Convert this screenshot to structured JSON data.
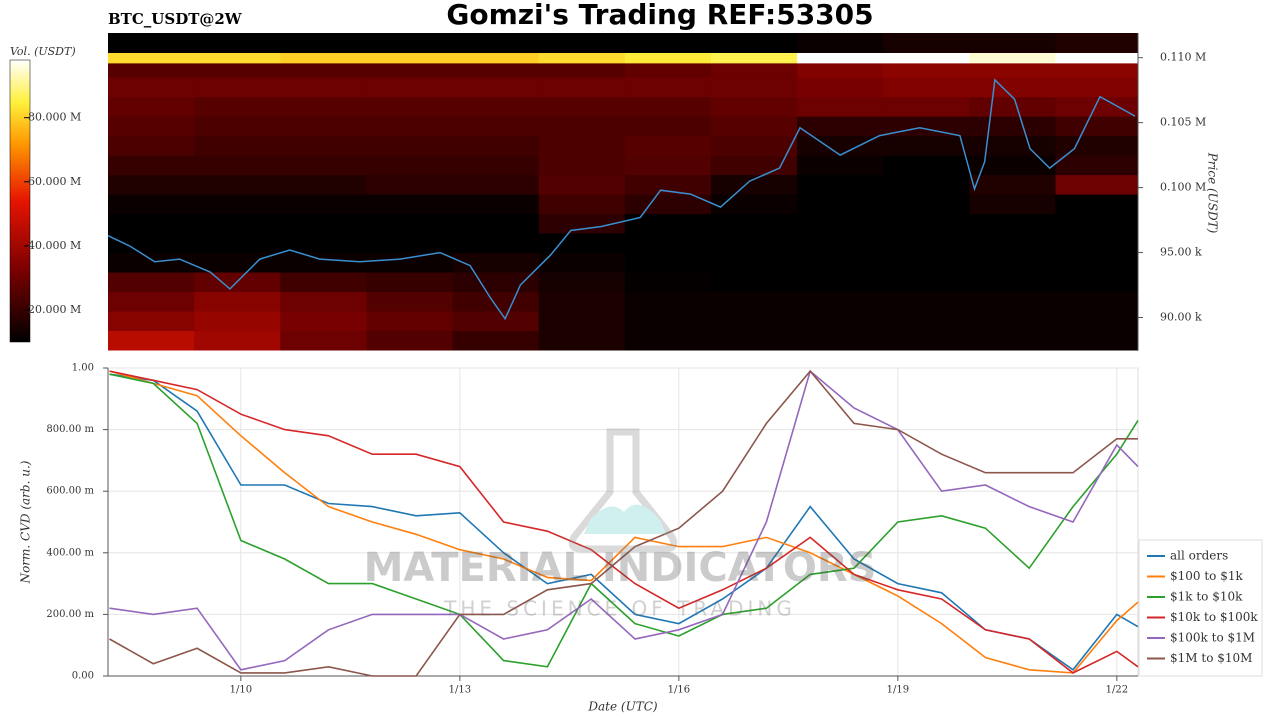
{
  "title": "Gomzi's Trading REF:53305",
  "symbol": "BTC_USDT@2W",
  "watermark": {
    "brand": "MATERIAL INDICATORS",
    "tagline": "THE SCIENCE OF TRADING"
  },
  "chart_data": [
    {
      "type": "heatmap",
      "colorbar_label": "Vol. (USDT)",
      "y_label": "Price (USDT)",
      "time_bins": [
        8.18,
        9.36,
        10.54,
        11.72,
        12.9,
        14.08,
        15.26,
        16.44,
        17.62,
        18.8,
        19.98,
        21.16,
        22.29
      ],
      "price_bins": [
        87500,
        89000,
        90500,
        92000,
        93500,
        95000,
        96500,
        98000,
        99500,
        101000,
        102500,
        104000,
        105500,
        107000,
        108500,
        109600,
        110400,
        111900
      ],
      "z": [
        [
          45000000,
          40000000,
          30000000,
          25000000,
          20000000,
          15000000,
          12000000,
          12000000,
          12000000,
          12000000,
          12000000,
          12000000
        ],
        [
          35000000,
          38000000,
          32000000,
          28000000,
          25000000,
          15000000,
          12000000,
          12000000,
          12000000,
          12000000,
          12000000,
          12000000
        ],
        [
          30000000,
          35000000,
          30000000,
          25000000,
          22000000,
          15000000,
          12000000,
          12000000,
          12000000,
          12000000,
          12000000,
          12000000
        ],
        [
          25000000,
          28000000,
          22000000,
          20000000,
          18000000,
          14000000,
          11000000,
          10000000,
          10000000,
          10000000,
          10000000,
          10000000
        ],
        [
          12000000,
          12000000,
          12000000,
          12000000,
          14000000,
          12000000,
          10000000,
          10000000,
          10000000,
          10000000,
          10000000,
          10000000
        ],
        [
          10000000,
          10000000,
          10000000,
          10000000,
          10000000,
          10000000,
          10000000,
          10000000,
          10000000,
          10000000,
          10000000,
          10000000
        ],
        [
          10000000,
          10000000,
          10000000,
          10000000,
          10000000,
          18000000,
          10000000,
          10000000,
          10000000,
          10000000,
          10000000,
          10000000
        ],
        [
          12000000,
          12000000,
          12000000,
          12000000,
          12000000,
          22000000,
          18000000,
          12000000,
          10000000,
          10000000,
          14000000,
          10000000
        ],
        [
          16000000,
          16000000,
          16000000,
          18000000,
          18000000,
          25000000,
          22000000,
          14000000,
          10000000,
          10000000,
          16000000,
          30000000
        ],
        [
          20000000,
          20000000,
          20000000,
          20000000,
          20000000,
          24000000,
          25000000,
          22000000,
          12000000,
          10000000,
          12000000,
          18000000
        ],
        [
          24000000,
          22000000,
          22000000,
          22000000,
          22000000,
          24000000,
          26000000,
          24000000,
          14000000,
          14000000,
          14000000,
          16000000
        ],
        [
          26000000,
          24000000,
          24000000,
          24000000,
          24000000,
          24000000,
          24000000,
          26000000,
          18000000,
          18000000,
          18000000,
          22000000
        ],
        [
          28000000,
          26000000,
          26000000,
          26000000,
          26000000,
          26000000,
          26000000,
          28000000,
          30000000,
          30000000,
          28000000,
          30000000
        ],
        [
          30000000,
          30000000,
          30000000,
          30000000,
          30000000,
          30000000,
          30000000,
          30000000,
          32000000,
          34000000,
          34000000,
          34000000
        ],
        [
          26000000,
          26000000,
          26000000,
          26000000,
          26000000,
          26000000,
          28000000,
          30000000,
          34000000,
          36000000,
          36000000,
          36000000
        ],
        [
          82000000,
          82000000,
          80000000,
          80000000,
          80000000,
          82000000,
          84000000,
          86000000,
          98000000,
          98000000,
          95000000,
          98000000
        ],
        [
          10000000,
          10000000,
          10000000,
          10000000,
          10000000,
          10000000,
          10000000,
          10000000,
          12000000,
          14000000,
          14000000,
          16000000
        ]
      ],
      "zlim": [
        10000000,
        98000000
      ],
      "zticks": [
        {
          "value": 20000000,
          "label": "20.000 M"
        },
        {
          "value": 40000000,
          "label": "40.000 M"
        },
        {
          "value": 60000000,
          "label": "60.000 M"
        },
        {
          "value": 80000000,
          "label": "80.000 M"
        }
      ],
      "xlim": [
        8.18,
        22.29
      ],
      "ylim": [
        87500,
        111900
      ],
      "yticks": [
        {
          "value": 90000,
          "label": "90.00 k"
        },
        {
          "value": 95000,
          "label": "95.00 k"
        },
        {
          "value": 100000,
          "label": "0.100 M"
        },
        {
          "value": 105000,
          "label": "0.105 M"
        },
        {
          "value": 110000,
          "label": "0.110 M"
        }
      ],
      "price": {
        "color": "#3a8fd0",
        "x": [
          8.18,
          8.48,
          8.82,
          9.16,
          9.58,
          9.85,
          10.26,
          10.67,
          11.08,
          11.63,
          12.18,
          12.73,
          13.14,
          13.42,
          13.62,
          13.83,
          14.24,
          14.52,
          14.93,
          15.47,
          15.75,
          16.16,
          16.57,
          16.97,
          17.38,
          17.66,
          18.21,
          18.75,
          19.3,
          19.85,
          20.05,
          20.19,
          20.33,
          20.6,
          20.81,
          21.08,
          21.42,
          21.77,
          22.25
        ],
        "values": [
          96300,
          95500,
          94300,
          94500,
          93500,
          92200,
          94500,
          95200,
          94500,
          94300,
          94500,
          95000,
          94000,
          91500,
          89900,
          92500,
          94800,
          96700,
          97000,
          97700,
          99800,
          99500,
          98500,
          100500,
          101500,
          104600,
          102500,
          104000,
          104600,
          104000,
          99900,
          102000,
          108300,
          106800,
          103000,
          101500,
          103000,
          107000,
          105500
        ]
      }
    },
    {
      "type": "line",
      "x_label": "Date (UTC)",
      "y_label": "Norm. CVD (arb. u.)",
      "grid": true,
      "legend": "right",
      "xlim": [
        8.18,
        22.29
      ],
      "xticks": [
        {
          "value": 10,
          "label": "1/10"
        },
        {
          "value": 13,
          "label": "1/13"
        },
        {
          "value": 16,
          "label": "1/16"
        },
        {
          "value": 19,
          "label": "1/19"
        },
        {
          "value": 22,
          "label": "1/22"
        }
      ],
      "ylim": [
        0,
        1
      ],
      "yticks": [
        {
          "value": 0,
          "label": "0.00"
        },
        {
          "value": 0.2,
          "label": "200.00 m"
        },
        {
          "value": 0.4,
          "label": "400.00 m"
        },
        {
          "value": 0.6,
          "label": "600.00 m"
        },
        {
          "value": 0.8,
          "label": "800.00 m"
        },
        {
          "value": 1,
          "label": "1.00"
        }
      ],
      "x": [
        8.2,
        8.8,
        9.4,
        10.0,
        10.6,
        11.2,
        11.8,
        12.4,
        13.0,
        13.6,
        14.2,
        14.8,
        15.4,
        16.0,
        16.6,
        17.2,
        17.8,
        18.4,
        19.0,
        19.6,
        20.2,
        20.8,
        21.4,
        22.0,
        22.29
      ],
      "series": [
        {
          "name": "all orders",
          "color": "#1f77b4",
          "values": [
            0.98,
            0.96,
            0.86,
            0.62,
            0.62,
            0.56,
            0.55,
            0.52,
            0.53,
            0.4,
            0.3,
            0.33,
            0.2,
            0.17,
            0.25,
            0.35,
            0.55,
            0.38,
            0.3,
            0.27,
            0.15,
            0.12,
            0.02,
            0.2,
            0.16
          ]
        },
        {
          "name": "$100 to $1k",
          "color": "#ff7f0e",
          "values": [
            0.99,
            0.95,
            0.91,
            0.78,
            0.66,
            0.55,
            0.5,
            0.46,
            0.41,
            0.38,
            0.32,
            0.31,
            0.45,
            0.42,
            0.42,
            0.45,
            0.4,
            0.33,
            0.26,
            0.17,
            0.06,
            0.02,
            0.01,
            0.18,
            0.24
          ]
        },
        {
          "name": "$1k to $10k",
          "color": "#2ca02c",
          "values": [
            0.98,
            0.95,
            0.82,
            0.44,
            0.38,
            0.3,
            0.3,
            0.25,
            0.2,
            0.05,
            0.03,
            0.3,
            0.17,
            0.13,
            0.2,
            0.22,
            0.33,
            0.35,
            0.5,
            0.52,
            0.48,
            0.35,
            0.55,
            0.72,
            0.83
          ]
        },
        {
          "name": "$10k to $100k",
          "color": "#d62728",
          "values": [
            0.99,
            0.96,
            0.93,
            0.85,
            0.8,
            0.78,
            0.72,
            0.72,
            0.68,
            0.5,
            0.47,
            0.41,
            0.3,
            0.22,
            0.28,
            0.35,
            0.45,
            0.33,
            0.28,
            0.25,
            0.15,
            0.12,
            0.01,
            0.08,
            0.03
          ]
        },
        {
          "name": "$100k to $1M",
          "color": "#9467bd",
          "values": [
            0.22,
            0.2,
            0.22,
            0.02,
            0.05,
            0.15,
            0.2,
            0.2,
            0.2,
            0.12,
            0.15,
            0.25,
            0.12,
            0.15,
            0.2,
            0.5,
            0.99,
            0.87,
            0.8,
            0.6,
            0.62,
            0.55,
            0.5,
            0.75,
            0.68
          ]
        },
        {
          "name": "$1M to $10M",
          "color": "#8c564b",
          "values": [
            0.12,
            0.04,
            0.09,
            0.01,
            0.01,
            0.03,
            0,
            0,
            0.2,
            0.2,
            0.28,
            0.3,
            0.42,
            0.48,
            0.6,
            0.82,
            0.99,
            0.82,
            0.8,
            0.72,
            0.66,
            0.66,
            0.66,
            0.77,
            0.77
          ]
        }
      ]
    }
  ]
}
